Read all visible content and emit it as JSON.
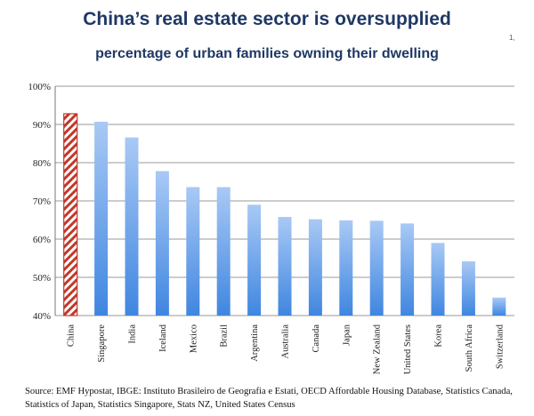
{
  "header": {
    "title": "China’s real estate sector is oversupplied",
    "subtitle": "percentage of urban families owning their dwelling",
    "corner_mark": "1,"
  },
  "footer": {
    "source": "Source: EMF Hypostat, IBGE: Instituto Brasileiro de Geografia e Estati, OECD Affordable Housing Database, Statistics Canada, Statistics of Japan, Statistics Singapore, Stats NZ, United States Census"
  },
  "colors": {
    "bar_top": "#a9c9f5",
    "bar_bottom": "#3f86e0",
    "highlight_stripe": "#c0392b",
    "title": "#1f3864",
    "grid": "#9a9a9a"
  },
  "chart_data": {
    "type": "bar",
    "title": "China’s real estate sector is oversupplied",
    "subtitle": "percentage of urban families owning their dwelling",
    "xlabel": "",
    "ylabel": "",
    "ylim": [
      40,
      100
    ],
    "yticks": [
      40,
      50,
      60,
      70,
      80,
      90,
      100
    ],
    "ytick_labels": [
      "40%",
      "50%",
      "60%",
      "70%",
      "80%",
      "90%",
      "100%"
    ],
    "grid": true,
    "legend": "none",
    "highlight_category": "China",
    "categories": [
      "China",
      "Singapore",
      "India",
      "Iceland",
      "Mexico",
      "Brazil",
      "Argentina",
      "Australia",
      "Canada",
      "Japan",
      "New Zealand",
      "United States",
      "Korea",
      "South Africa",
      "Switzerland"
    ],
    "values": [
      92.8,
      90.7,
      86.6,
      77.8,
      73.6,
      73.6,
      69.0,
      65.8,
      65.2,
      64.9,
      64.8,
      64.1,
      59.0,
      54.2,
      44.7
    ]
  }
}
